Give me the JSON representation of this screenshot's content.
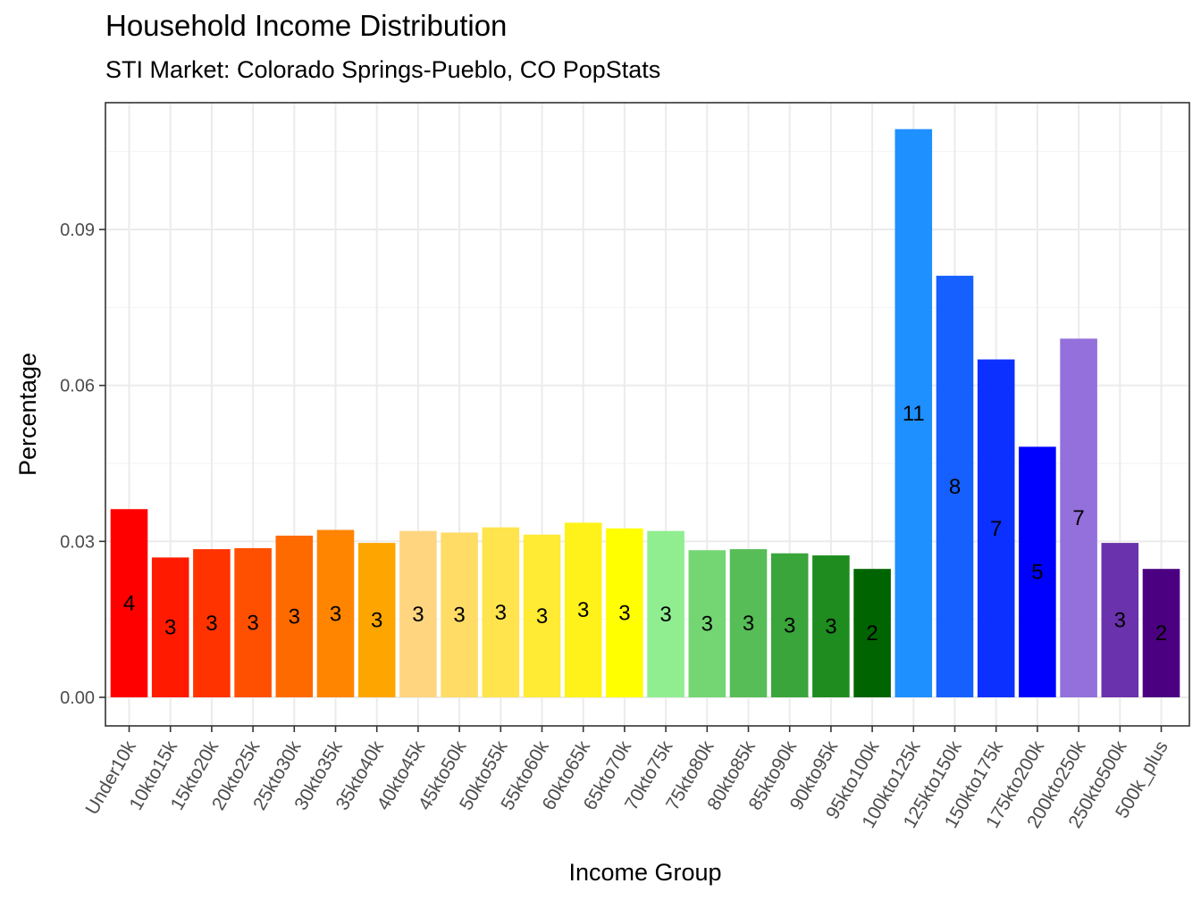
{
  "title": "Household Income Distribution",
  "subtitle": "STI Market: Colorado Springs-Pueblo, CO PopStats",
  "chart_data": {
    "type": "bar",
    "title": "Household Income Distribution",
    "subtitle": "STI Market: Colorado Springs-Pueblo, CO PopStats",
    "xlabel": "Income Group",
    "ylabel": "Percentage",
    "ylim": [
      0,
      0.1
    ],
    "yticks": [
      "0.00",
      "0.03",
      "0.06",
      "0.09"
    ],
    "ytick_values": [
      0,
      0.03,
      0.06,
      0.09
    ],
    "grid": true,
    "legend": "none",
    "categories": [
      "Under10k",
      "10kto15k",
      "15kto20k",
      "20kto25k",
      "25kto30k",
      "30kto35k",
      "35kto40k",
      "40kto45k",
      "45kto50k",
      "50kto55k",
      "55kto60k",
      "60kto65k",
      "65kto70k",
      "70kto75k",
      "75kto80k",
      "80kto85k",
      "85kto90k",
      "90kto95k",
      "95kto100k",
      "100kto125k",
      "125kto150k",
      "150kto175k",
      "175kto200k",
      "200kto250k",
      "250kto500k",
      "500k_plus"
    ],
    "values": [
      0.0362,
      0.0269,
      0.0285,
      0.0287,
      0.0311,
      0.0322,
      0.0297,
      0.032,
      0.0317,
      0.0327,
      0.0313,
      0.0336,
      0.0325,
      0.032,
      0.0283,
      0.0285,
      0.0277,
      0.0273,
      0.0247,
      0.1093,
      0.0811,
      0.065,
      0.0482,
      0.069,
      0.0297,
      0.0247
    ],
    "labels": [
      "4",
      "3",
      "3",
      "3",
      "3",
      "3",
      "3",
      "3",
      "3",
      "3",
      "3",
      "3",
      "3",
      "3",
      "3",
      "3",
      "3",
      "3",
      "2",
      "11",
      "8",
      "7",
      "5",
      "7",
      "3",
      "2"
    ],
    "colors": [
      "#FF0000",
      "#FF1A00",
      "#FF3300",
      "#FF4F00",
      "#FF6A00",
      "#FF8500",
      "#FFA500",
      "#FFD580",
      "#FFDC66",
      "#FFE44D",
      "#FFEB33",
      "#FFF21A",
      "#FFFF00",
      "#90EE90",
      "#73D673",
      "#57BD57",
      "#3AA53A",
      "#1E8C1E",
      "#006400",
      "#1E90FF",
      "#1660FF",
      "#0B30FF",
      "#0000FF",
      "#9370DB",
      "#6A32AC",
      "#4B0082"
    ]
  }
}
